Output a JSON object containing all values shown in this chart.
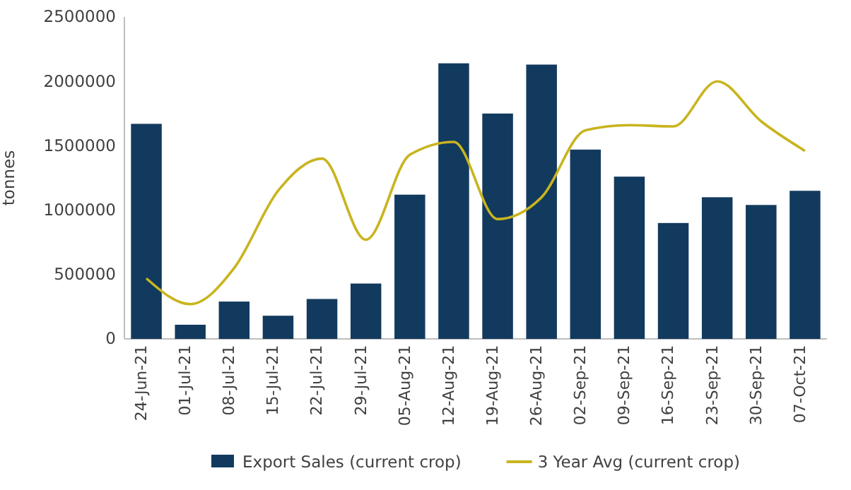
{
  "chart_data": {
    "type": "bar",
    "ylabel": "tonnes",
    "categories": [
      "24-Jun-21",
      "01-Jul-21",
      "08-Jul-21",
      "15-Jul-21",
      "22-Jul-21",
      "29-Jul-21",
      "05-Aug-21",
      "12-Aug-21",
      "19-Aug-21",
      "26-Aug-21",
      "02-Sep-21",
      "09-Sep-21",
      "16-Sep-21",
      "23-Sep-21",
      "30-Sep-21",
      "07-Oct-21"
    ],
    "series": [
      {
        "name": "Export Sales (current crop)",
        "color": "#123a5e",
        "values": [
          1670000,
          110000,
          290000,
          180000,
          310000,
          430000,
          1120000,
          2140000,
          1750000,
          2130000,
          1470000,
          1260000,
          900000,
          1100000,
          1040000,
          1150000
        ]
      },
      {
        "name": "3 Year Avg (current crop)",
        "type": "line",
        "color": "#c8b41e",
        "values": [
          470000,
          270000,
          550000,
          1150000,
          1400000,
          770000,
          1430000,
          1530000,
          930000,
          1100000,
          1620000,
          1660000,
          1650000,
          2000000,
          1690000,
          1460000
        ]
      }
    ],
    "ylim": [
      0,
      2500000
    ],
    "yticks": [
      0,
      500000,
      1000000,
      1500000,
      2000000,
      2500000
    ],
    "legend": "bottom",
    "marker": "none",
    "line_style": "solid"
  }
}
